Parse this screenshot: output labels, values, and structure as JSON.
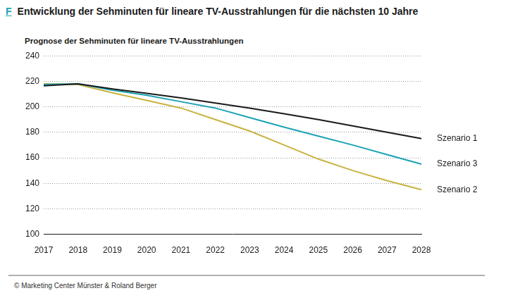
{
  "chart_data": {
    "type": "line",
    "label": "F",
    "title": "Entwicklung der Sehminuten für lineare TV-Ausstrahlungen für die nächsten 10 Jahre",
    "subtitle": "Prognose der Sehminuten für lineare TV-Ausstrahlungen",
    "source": "© Marketing Center Münster & Roland Berger",
    "categories": [
      "2017",
      "2018",
      "2019",
      "2020",
      "2021",
      "2022",
      "2023",
      "2024",
      "2025",
      "2026",
      "2027",
      "2028"
    ],
    "series": [
      {
        "name": "Szenario 1",
        "color": "#1a1a1a",
        "values": [
          216.5,
          218,
          214,
          210.5,
          207,
          203,
          199,
          194.5,
          190,
          185,
          180,
          175
        ]
      },
      {
        "name": "Szenario 3",
        "color": "#1aa3b5",
        "values": [
          217.5,
          218,
          213,
          209,
          204,
          199,
          191.5,
          184,
          177,
          170,
          162.5,
          155
        ]
      },
      {
        "name": "Szenario 2",
        "color": "#c9b240",
        "values": [
          218,
          217.5,
          211,
          205,
          199,
          190,
          181,
          170,
          159,
          150,
          142,
          135
        ]
      }
    ],
    "ylim": [
      100,
      240
    ],
    "yticks": [
      100,
      120,
      140,
      160,
      180,
      200,
      220,
      240
    ],
    "grid": true
  }
}
